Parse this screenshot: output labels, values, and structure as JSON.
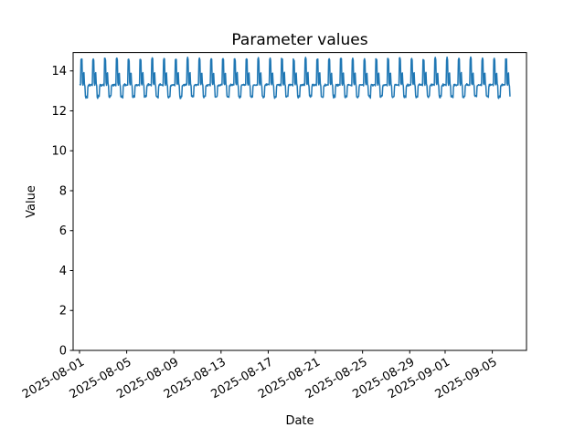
{
  "figure": {
    "background": "#ffffff"
  },
  "chart_data": {
    "type": "line",
    "title": "Parameter values",
    "xlabel": "Date",
    "ylabel": "Value",
    "grid": false,
    "legend": "none",
    "series_color": "#1f77b4",
    "line_width": 1.5,
    "ylim": [
      0,
      14.92
    ],
    "y_ticks": [
      0,
      2,
      4,
      6,
      8,
      10,
      12,
      14
    ],
    "xlim_days_rel_start": [
      -0.5425,
      37.9
    ],
    "date_start": "2025-08-01",
    "date_end_approx": "2025-09-06 12:00",
    "x_tick_labels": [
      "2025-08-01",
      "2025-08-05",
      "2025-08-09",
      "2025-08-13",
      "2025-08-17",
      "2025-08-21",
      "2025-08-25",
      "2025-08-29",
      "2025-09-01",
      "2025-09-05"
    ],
    "x_tick_days": [
      0,
      4,
      8,
      12,
      16,
      20,
      24,
      28,
      31,
      35
    ],
    "x_tick_rotation": 30,
    "duration_days": 36.5,
    "samples_per_day": 24,
    "daily_pattern_hourly": [
      13.3,
      13.32,
      13.28,
      14.58,
      14.62,
      14.55,
      13.4,
      13.3,
      13.85,
      13.9,
      13.35,
      13.25,
      12.72,
      12.68,
      12.7,
      12.74,
      12.7,
      13.22,
      13.3,
      13.28,
      13.33,
      13.27,
      13.31,
      13.29
    ],
    "value_high": 14.6,
    "value_baseline": 13.3,
    "value_low": 12.7,
    "noise_amplitude": 0.03,
    "peak_noise_amplitude": 0.05,
    "seed": 42
  }
}
